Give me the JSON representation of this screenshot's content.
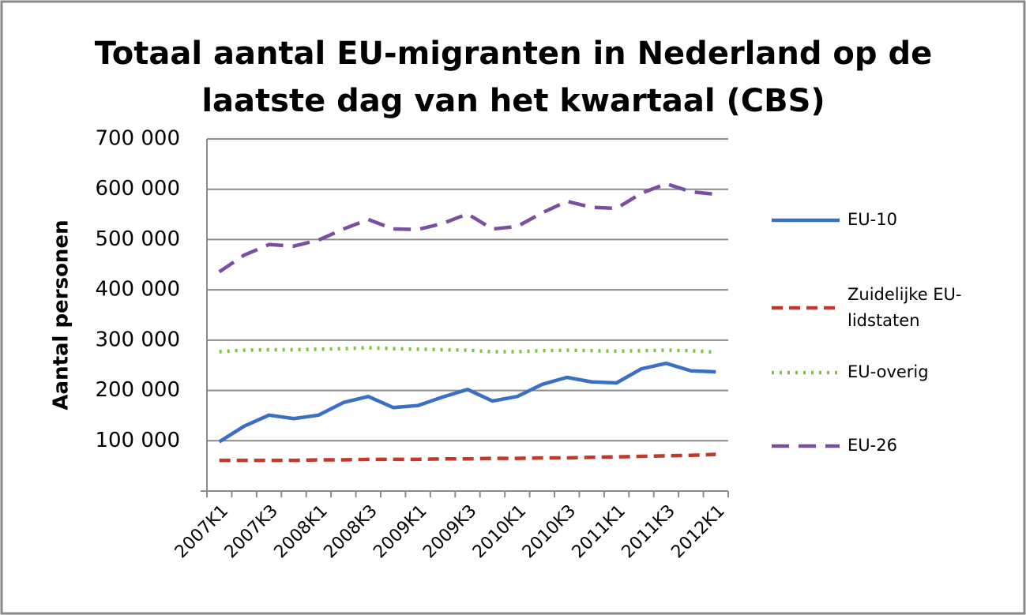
{
  "chart_data": {
    "type": "line",
    "title": "Totaal aantal EU-migranten in Nederland op de laatste dag van het kwartaal (CBS)",
    "y_label": "Aantal personen",
    "categories": [
      "2007K1",
      null,
      "2007K3",
      null,
      "2008K1",
      null,
      "2008K3",
      null,
      "2009K1",
      null,
      "2009K3",
      null,
      "2010K1",
      null,
      "2010K3",
      null,
      "2011K1",
      null,
      "2011K3",
      null,
      "2012K1"
    ],
    "series": [
      {
        "name": "EU-10",
        "color": "#3a6fc4",
        "dash": "solid",
        "values": [
          98000,
          129000,
          151000,
          144000,
          151000,
          176000,
          188000,
          166000,
          170000,
          187000,
          202000,
          179000,
          188000,
          212000,
          226000,
          217000,
          215000,
          243000,
          254000,
          239000,
          237000
        ]
      },
      {
        "name": "Zuidelijke EU-lidstaten",
        "color": "#c0392b",
        "dash": "dashed",
        "values": [
          61000,
          61000,
          61000,
          61000,
          62000,
          62000,
          63000,
          63000,
          63000,
          64000,
          64000,
          65000,
          65000,
          66000,
          66000,
          67000,
          68000,
          69000,
          70000,
          71000,
          73000
        ]
      },
      {
        "name": "EU-overig",
        "color": "#7fc241",
        "dash": "dotted",
        "values": [
          277000,
          280000,
          281000,
          281000,
          282000,
          283000,
          285000,
          283000,
          282000,
          281000,
          280000,
          277000,
          277000,
          279000,
          280000,
          279000,
          278000,
          279000,
          280000,
          279000,
          276000
        ]
      },
      {
        "name": "EU-26",
        "color": "#7a4fa0",
        "dash": "longdash",
        "values": [
          436000,
          469000,
          490000,
          487000,
          499000,
          521000,
          540000,
          521000,
          520000,
          532000,
          551000,
          521000,
          526000,
          553000,
          576000,
          564000,
          562000,
          592000,
          611000,
          595000,
          590000
        ]
      }
    ],
    "ylim": [
      0,
      700000
    ],
    "yticks": [
      {
        "value": 100000,
        "label": "100 000"
      },
      {
        "value": 200000,
        "label": "200 000"
      },
      {
        "value": 300000,
        "label": "300 000"
      },
      {
        "value": 400000,
        "label": "400 000"
      },
      {
        "value": 500000,
        "label": "500 000"
      },
      {
        "value": 600000,
        "label": "600 000"
      },
      {
        "value": 700000,
        "label": "700 000"
      }
    ],
    "grid": true,
    "legend": "right"
  }
}
